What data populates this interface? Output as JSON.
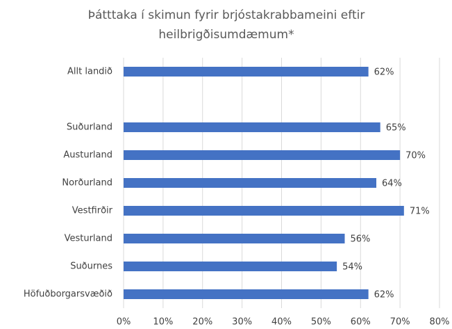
{
  "chart_data": {
    "type": "bar",
    "orientation": "horizontal",
    "title": [
      "Þátttaka í skimun fyrir brjóstakrabbameini eftir",
      "heilbrigðisumdæmum*"
    ],
    "categories": [
      "Allt landið",
      null,
      "Suðurland",
      "Austurland",
      "Norðurland",
      "Vestfirðir",
      "Vesturland",
      "Suðurnes",
      "Höfuðborgarsvæðið"
    ],
    "values": [
      62,
      null,
      65,
      70,
      64,
      71,
      56,
      54,
      62
    ],
    "value_labels": [
      "62%",
      null,
      "65%",
      "70%",
      "64%",
      "71%",
      "56%",
      "54%",
      "62%"
    ],
    "color": "#4472c4",
    "xlim": [
      0,
      80
    ],
    "xticks": [
      {
        "value": 0,
        "label": "0%"
      },
      {
        "value": 10,
        "label": "10%"
      },
      {
        "value": 20,
        "label": "20%"
      },
      {
        "value": 30,
        "label": "30%"
      },
      {
        "value": 40,
        "label": "40%"
      },
      {
        "value": 50,
        "label": "50%"
      },
      {
        "value": 60,
        "label": "60%"
      },
      {
        "value": 70,
        "label": "70%"
      },
      {
        "value": 80,
        "label": "80%"
      }
    ],
    "grid": true
  }
}
